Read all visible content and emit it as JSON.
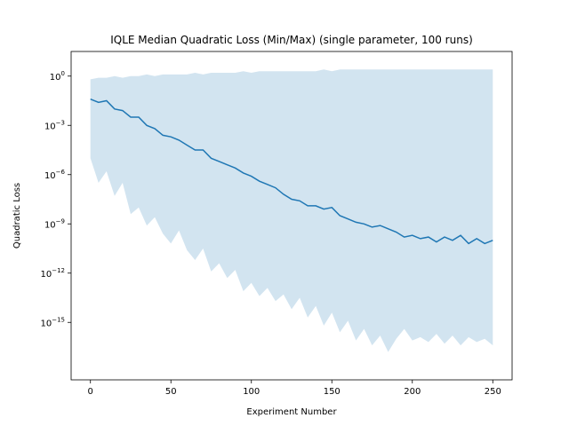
{
  "chart_data": {
    "type": "line",
    "title": "IQLE Median Quadratic Loss (Min/Max) (single parameter, 100 runs)",
    "xlabel": "Experiment Number",
    "ylabel": "Quadratic Loss",
    "xlim": [
      -12,
      262
    ],
    "ylim_log10": [
      -18.5,
      1.5
    ],
    "yscale": "log",
    "grid": false,
    "x_ticks": [
      0,
      50,
      100,
      150,
      200,
      250
    ],
    "x_tick_labels": [
      "0",
      "50",
      "100",
      "150",
      "200",
      "250"
    ],
    "y_ticks_log10": [
      0,
      -3,
      -6,
      -9,
      -12,
      -15
    ],
    "y_tick_labels": [
      {
        "base": "10",
        "exp": "0"
      },
      {
        "base": "10",
        "exp": "−3"
      },
      {
        "base": "10",
        "exp": "−6"
      },
      {
        "base": "10",
        "exp": "−9"
      },
      {
        "base": "10",
        "exp": "−12"
      },
      {
        "base": "10",
        "exp": "−15"
      }
    ],
    "colors": {
      "line": "#1f77b4",
      "band": "#1f77b4",
      "band_opacity": 0.2
    },
    "series": [
      {
        "kind": "line",
        "x": [
          0,
          5,
          10,
          15,
          20,
          25,
          30,
          35,
          40,
          45,
          50,
          55,
          60,
          65,
          70,
          75,
          80,
          85,
          90,
          95,
          100,
          105,
          110,
          115,
          120,
          125,
          130,
          135,
          140,
          145,
          150,
          155,
          160,
          165,
          170,
          175,
          180,
          185,
          190,
          195,
          200,
          205,
          210,
          215,
          220,
          225,
          230,
          235,
          240,
          245,
          250
        ],
        "log10_values": [
          -1.4,
          -1.6,
          -1.5,
          -2.0,
          -2.1,
          -2.5,
          -2.5,
          -3.0,
          -3.2,
          -3.6,
          -3.7,
          -3.9,
          -4.2,
          -4.5,
          -4.5,
          -5.0,
          -5.2,
          -5.4,
          -5.6,
          -5.9,
          -6.1,
          -6.4,
          -6.6,
          -6.8,
          -7.2,
          -7.5,
          -7.6,
          -7.9,
          -7.9,
          -8.1,
          -8.0,
          -8.5,
          -8.7,
          -8.9,
          -9.0,
          -9.2,
          -9.1,
          -9.3,
          -9.5,
          -9.8,
          -9.7,
          -9.9,
          -9.8,
          -10.1,
          -9.8,
          -10.0,
          -9.7,
          -10.2,
          -9.9,
          -10.2,
          -10.0
        ]
      },
      {
        "kind": "band",
        "x": [
          0,
          5,
          10,
          15,
          20,
          25,
          30,
          35,
          40,
          45,
          50,
          55,
          60,
          65,
          70,
          75,
          80,
          85,
          90,
          95,
          100,
          105,
          110,
          115,
          120,
          125,
          130,
          135,
          140,
          145,
          150,
          155,
          160,
          165,
          170,
          175,
          180,
          185,
          190,
          195,
          200,
          205,
          210,
          215,
          220,
          225,
          230,
          235,
          240,
          245,
          250
        ],
        "log10_upper": [
          -0.2,
          -0.1,
          -0.1,
          0.0,
          -0.1,
          0.0,
          0.0,
          0.1,
          0.0,
          0.1,
          0.1,
          0.1,
          0.1,
          0.2,
          0.1,
          0.2,
          0.2,
          0.2,
          0.2,
          0.3,
          0.2,
          0.3,
          0.3,
          0.3,
          0.3,
          0.3,
          0.3,
          0.3,
          0.3,
          0.4,
          0.3,
          0.4,
          0.4,
          0.4,
          0.4,
          0.4,
          0.4,
          0.4,
          0.4,
          0.4,
          0.4,
          0.4,
          0.4,
          0.4,
          0.4,
          0.4,
          0.4,
          0.4,
          0.4,
          0.4,
          0.4
        ],
        "log10_lower": [
          -5.0,
          -6.5,
          -5.8,
          -7.3,
          -6.5,
          -8.4,
          -8.0,
          -9.1,
          -8.6,
          -9.6,
          -10.2,
          -9.4,
          -10.6,
          -11.2,
          -10.5,
          -11.9,
          -11.4,
          -12.3,
          -11.8,
          -13.1,
          -12.6,
          -13.4,
          -12.9,
          -13.7,
          -13.3,
          -14.2,
          -13.5,
          -14.7,
          -14.0,
          -15.2,
          -14.4,
          -15.6,
          -14.9,
          -16.1,
          -15.4,
          -16.4,
          -15.8,
          -16.8,
          -16.0,
          -15.4,
          -16.1,
          -15.9,
          -16.2,
          -15.7,
          -16.3,
          -15.8,
          -16.4,
          -15.9,
          -16.2,
          -16.0,
          -16.4
        ]
      }
    ]
  }
}
